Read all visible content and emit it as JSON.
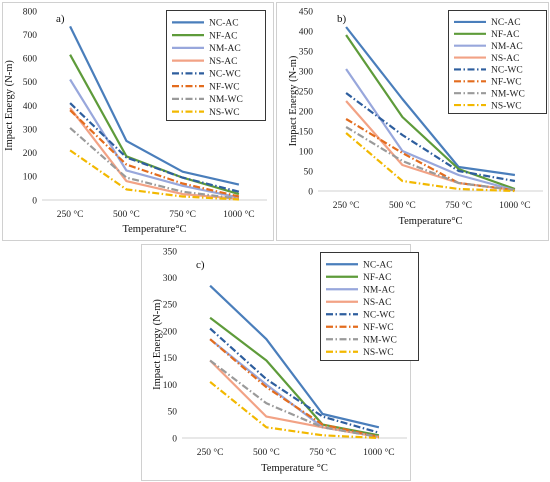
{
  "series_styles": [
    {
      "name": "NC-AC",
      "color": "#4A7EBB",
      "dash": "solid"
    },
    {
      "name": "NF-AC",
      "color": "#5E9B3A",
      "dash": "solid"
    },
    {
      "name": "NM-AC",
      "color": "#98A7DC",
      "dash": "solid"
    },
    {
      "name": "NS-AC",
      "color": "#F2A285",
      "dash": "solid"
    },
    {
      "name": "NC-WC",
      "color": "#2E5E9E",
      "dash": "dashdot"
    },
    {
      "name": "NF-WC",
      "color": "#E36C1E",
      "dash": "dashdot"
    },
    {
      "name": "NM-WC",
      "color": "#9A9A9A",
      "dash": "dashdot"
    },
    {
      "name": "NS-WC",
      "color": "#F2B800",
      "dash": "dashdot"
    }
  ],
  "chart_data": [
    {
      "panel_label": "a)",
      "type": "line",
      "categories": [
        "250 °C",
        "500 °C",
        "750 °C",
        "1000 °C"
      ],
      "xlabel": "Temperature°C",
      "ylabel": "Impact Energy (N-m)",
      "ylim": [
        0,
        800
      ],
      "yticks": [
        0,
        100,
        200,
        300,
        400,
        500,
        600,
        700,
        800
      ],
      "grid": false,
      "legend": "top-right",
      "series": [
        {
          "name": "NC-AC",
          "values": [
            735,
            250,
            120,
            65
          ]
        },
        {
          "name": "NF-AC",
          "values": [
            615,
            185,
            95,
            25
          ]
        },
        {
          "name": "NM-AC",
          "values": [
            510,
            125,
            60,
            10
          ]
        },
        {
          "name": "NS-AC",
          "values": [
            390,
            80,
            25,
            5
          ]
        },
        {
          "name": "NC-WC",
          "values": [
            410,
            180,
            95,
            35
          ]
        },
        {
          "name": "NF-WC",
          "values": [
            380,
            150,
            70,
            15
          ]
        },
        {
          "name": "NM-WC",
          "values": [
            305,
            95,
            35,
            5
          ]
        },
        {
          "name": "NS-WC",
          "values": [
            210,
            45,
            15,
            2
          ]
        }
      ]
    },
    {
      "panel_label": "b)",
      "type": "line",
      "categories": [
        "250 °C",
        "500 °C",
        "750 °C",
        "1000 °C"
      ],
      "xlabel": "Temperature°C",
      "ylabel": "Impact Energy (N-m)",
      "ylim": [
        0,
        450
      ],
      "yticks": [
        0,
        50,
        100,
        150,
        200,
        250,
        300,
        350,
        400,
        450
      ],
      "grid": false,
      "legend": "top-right",
      "series": [
        {
          "name": "NC-AC",
          "values": [
            410,
            230,
            60,
            40
          ]
        },
        {
          "name": "NF-AC",
          "values": [
            390,
            185,
            55,
            5
          ]
        },
        {
          "name": "NM-AC",
          "values": [
            305,
            100,
            40,
            2
          ]
        },
        {
          "name": "NS-AC",
          "values": [
            225,
            65,
            20,
            2
          ]
        },
        {
          "name": "NC-WC",
          "values": [
            245,
            140,
            50,
            25
          ]
        },
        {
          "name": "NF-WC",
          "values": [
            180,
            95,
            20,
            2
          ]
        },
        {
          "name": "NM-WC",
          "values": [
            160,
            75,
            20,
            2
          ]
        },
        {
          "name": "NS-WC",
          "values": [
            145,
            25,
            5,
            0
          ]
        }
      ]
    },
    {
      "panel_label": "c)",
      "type": "line",
      "categories": [
        "250 °C",
        "500 °C",
        "750 °C",
        "1000 °C"
      ],
      "xlabel": "Temperature °C",
      "ylabel": "Impact Energy (N-m)",
      "ylim": [
        0,
        350
      ],
      "yticks": [
        0,
        50,
        100,
        150,
        200,
        250,
        300,
        350
      ],
      "grid": false,
      "legend": "top-right",
      "series": [
        {
          "name": "NC-AC",
          "values": [
            285,
            185,
            45,
            20
          ]
        },
        {
          "name": "NF-AC",
          "values": [
            225,
            145,
            25,
            5
          ]
        },
        {
          "name": "NM-AC",
          "values": [
            185,
            100,
            20,
            2
          ]
        },
        {
          "name": "NS-AC",
          "values": [
            145,
            40,
            20,
            2
          ]
        },
        {
          "name": "NC-WC",
          "values": [
            205,
            110,
            40,
            10
          ]
        },
        {
          "name": "NF-WC",
          "values": [
            185,
            95,
            25,
            2
          ]
        },
        {
          "name": "NM-WC",
          "values": [
            145,
            65,
            20,
            2
          ]
        },
        {
          "name": "NS-WC",
          "values": [
            105,
            20,
            5,
            0
          ]
        }
      ]
    }
  ]
}
